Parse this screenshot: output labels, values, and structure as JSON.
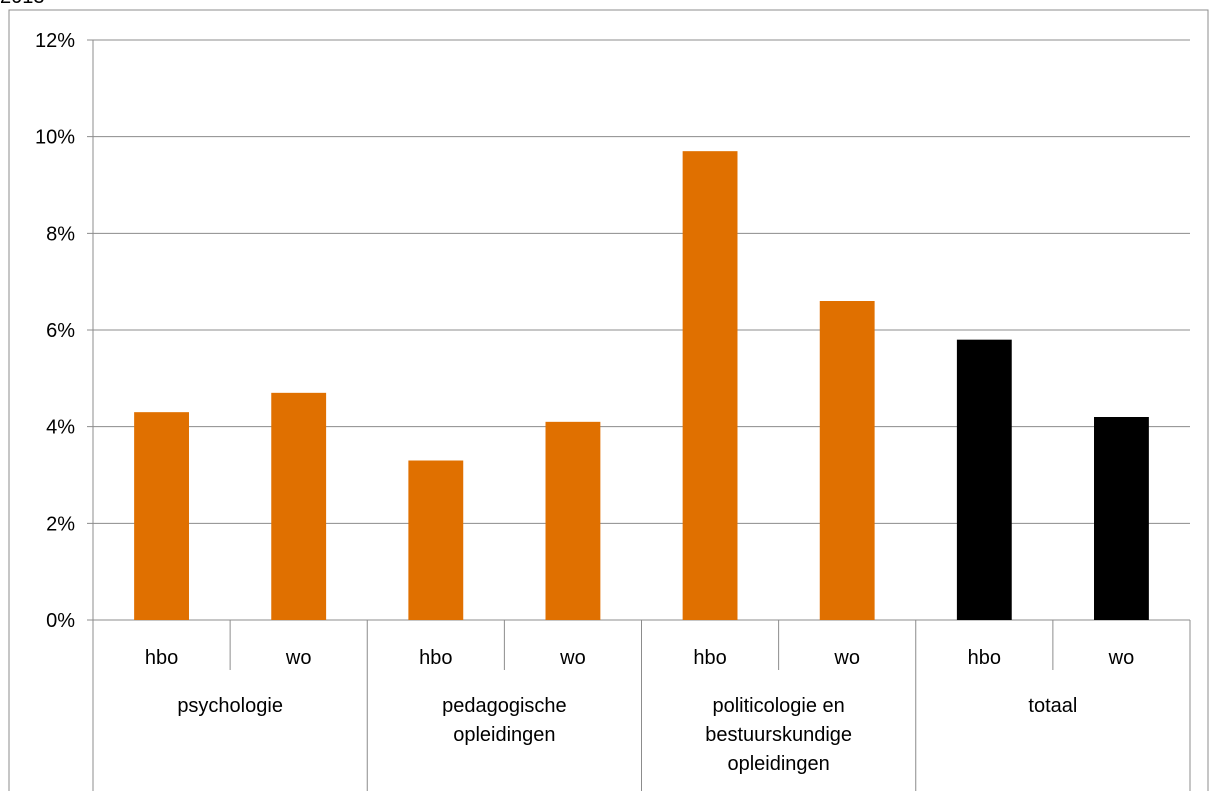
{
  "header_fragment": "2013",
  "chart_data": {
    "type": "bar",
    "title": "",
    "xlabel": "",
    "ylabel": "",
    "ylim": [
      0,
      12
    ],
    "y_ticks": [
      "0%",
      "2%",
      "4%",
      "6%",
      "8%",
      "10%",
      "12%"
    ],
    "y_tick_values": [
      0,
      2,
      4,
      6,
      8,
      10,
      12
    ],
    "grid": true,
    "groups": [
      {
        "label": "psychologie",
        "label_lines": [
          "psychologie"
        ],
        "bars": [
          {
            "label": "hbo",
            "value": 4.3,
            "color": "#E07000"
          },
          {
            "label": "wo",
            "value": 4.7,
            "color": "#E07000"
          }
        ]
      },
      {
        "label": "pedagogische opleidingen",
        "label_lines": [
          "pedagogische",
          "opleidingen"
        ],
        "bars": [
          {
            "label": "hbo",
            "value": 3.3,
            "color": "#E07000"
          },
          {
            "label": "wo",
            "value": 4.1,
            "color": "#E07000"
          }
        ]
      },
      {
        "label": "politicologie en bestuurskundige opleidingen",
        "label_lines": [
          "politicologie en",
          "bestuurskundige",
          "opleidingen"
        ],
        "bars": [
          {
            "label": "hbo",
            "value": 9.7,
            "color": "#E07000"
          },
          {
            "label": "wo",
            "value": 6.6,
            "color": "#E07000"
          }
        ]
      },
      {
        "label": "totaal",
        "label_lines": [
          "totaal"
        ],
        "bars": [
          {
            "label": "hbo",
            "value": 5.8,
            "color": "#000000"
          },
          {
            "label": "wo",
            "value": 4.2,
            "color": "#000000"
          }
        ]
      }
    ],
    "colors": {
      "accent": "#E07000",
      "total": "#000000",
      "grid": "#8C8C8C",
      "border": "#8C8C8C"
    }
  }
}
